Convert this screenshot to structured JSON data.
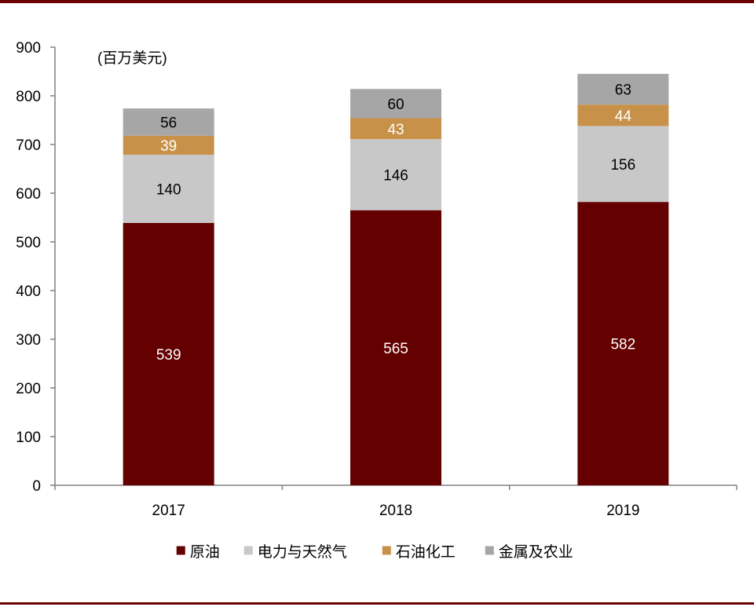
{
  "chart_data": {
    "type": "bar",
    "stacked": true,
    "unit_label": "(百万美元)",
    "categories": [
      "2017",
      "2018",
      "2019"
    ],
    "series": [
      {
        "name": "原油",
        "values": [
          539,
          565,
          582
        ],
        "color": "#640000",
        "label_color": "#ffffff"
      },
      {
        "name": "电力与天然气",
        "values": [
          140,
          146,
          156
        ],
        "color": "#c8c8c8",
        "label_color": "#000000"
      },
      {
        "name": "石油化工",
        "values": [
          39,
          43,
          44
        ],
        "color": "#c8914a",
        "label_color": "#ffffff"
      },
      {
        "name": "金属及农业",
        "values": [
          56,
          60,
          63
        ],
        "color": "#a6a6a6",
        "label_color": "#000000"
      }
    ],
    "ylim": [
      0,
      900
    ],
    "yticks": [
      0,
      100,
      200,
      300,
      400,
      500,
      600,
      700,
      800,
      900
    ],
    "grid": false,
    "legend_position": "bottom"
  }
}
